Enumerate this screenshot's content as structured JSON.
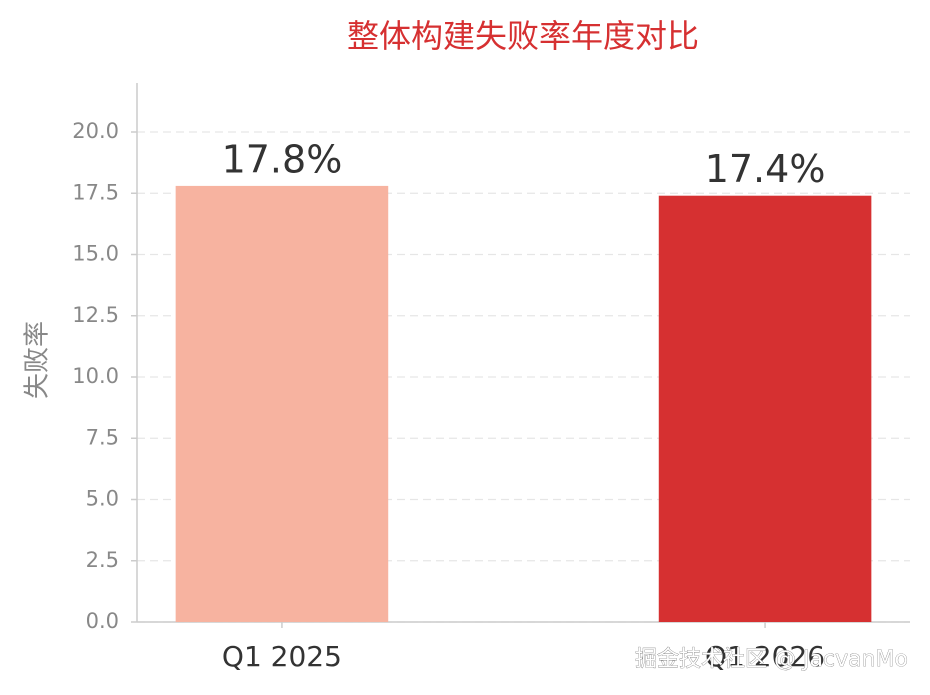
{
  "chart_data": {
    "type": "bar",
    "title": "整体构建失败率年度对比",
    "y_label": "失败率",
    "categories": [
      "Q1 2025",
      "Q1 2026"
    ],
    "values": [
      17.8,
      17.4
    ],
    "value_labels": [
      "17.8%",
      "17.4%"
    ],
    "colors": [
      "#f7b3a0",
      "#d63031"
    ],
    "ylim": [
      0,
      22
    ],
    "yticks": [
      {
        "value": 0,
        "label": "0.0"
      },
      {
        "value": 2.5,
        "label": "2.5"
      },
      {
        "value": 5,
        "label": "5.0"
      },
      {
        "value": 7.5,
        "label": "7.5"
      },
      {
        "value": 10,
        "label": "10.0"
      },
      {
        "value": 12.5,
        "label": "12.5"
      },
      {
        "value": 15,
        "label": "15.0"
      },
      {
        "value": 17.5,
        "label": "17.5"
      },
      {
        "value": 20,
        "label": "20.0"
      }
    ],
    "grid": true,
    "watermark": "掘金技术社区 @ JacvanMo"
  }
}
